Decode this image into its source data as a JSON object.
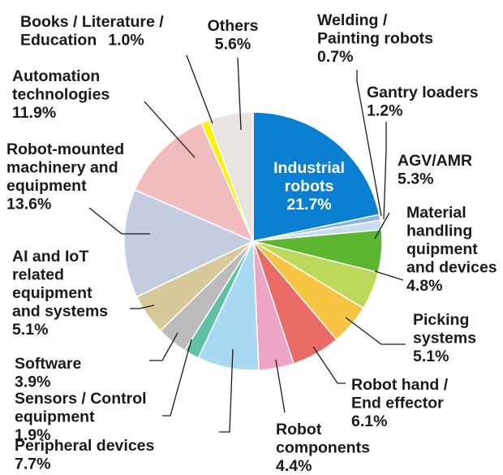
{
  "chart_data": {
    "type": "pie",
    "title": "",
    "start": "12 o'clock",
    "direction": "clockwise",
    "slices": [
      {
        "label": [
          "Industrial",
          "robots"
        ],
        "value": 21.7,
        "value_text": "21.7%",
        "color": "#0a7fd1"
      },
      {
        "label": [
          "Welding /",
          "Painting robots"
        ],
        "value": 0.7,
        "value_text": "0.7%",
        "color": "#8fb3e0"
      },
      {
        "label": [
          "Gantry loaders"
        ],
        "value": 1.2,
        "value_text": "1.2%",
        "color": "#c9dcf2"
      },
      {
        "label": [
          "AGV/AMR"
        ],
        "value": 5.3,
        "value_text": "5.3%",
        "color": "#5cb630"
      },
      {
        "label": [
          "Material",
          "handling",
          "quipment",
          "and devices"
        ],
        "value": 4.8,
        "value_text": "4.8%",
        "color": "#bcd959"
      },
      {
        "label": [
          "Picking",
          "systems"
        ],
        "value": 5.1,
        "value_text": "5.1%",
        "color": "#f8c543"
      },
      {
        "label": [
          "Robot hand /",
          "End effector"
        ],
        "value": 6.1,
        "value_text": "6.1%",
        "color": "#ea6a66"
      },
      {
        "label": [
          "Robot",
          "components"
        ],
        "value": 4.4,
        "value_text": "4.4%",
        "color": "#f0a4c5"
      },
      {
        "label": [
          "Peripheral devices"
        ],
        "value": 7.7,
        "value_text": "7.7%",
        "color": "#a9d8f3"
      },
      {
        "label": [
          "Sensors / Control",
          "equipment"
        ],
        "value": 1.9,
        "value_text": "1.9%",
        "color": "#5fc0a6"
      },
      {
        "label": [
          "Software"
        ],
        "value": 3.9,
        "value_text": "3.9%",
        "color": "#bcbcbc"
      },
      {
        "label": [
          "AI and IoT",
          "related",
          "equipment",
          "and systems"
        ],
        "value": 5.1,
        "value_text": "5.1%",
        "color": "#d7c99a"
      },
      {
        "label": [
          "Robot-mounted",
          "machinery and",
          "equipment"
        ],
        "value": 13.6,
        "value_text": "13.6%",
        "color": "#c4cde0"
      },
      {
        "label": [
          "Automation",
          "technologies"
        ],
        "value": 11.9,
        "value_text": "11.9%",
        "color": "#f3bcbc"
      },
      {
        "label": [
          "Books / Literature /",
          "Education"
        ],
        "value": 1.0,
        "value_text": "1.0%",
        "color": "#fff200"
      },
      {
        "label": [
          "Others"
        ],
        "value": 5.6,
        "value_text": "5.6%",
        "color": "#e8e5e0"
      }
    ]
  }
}
